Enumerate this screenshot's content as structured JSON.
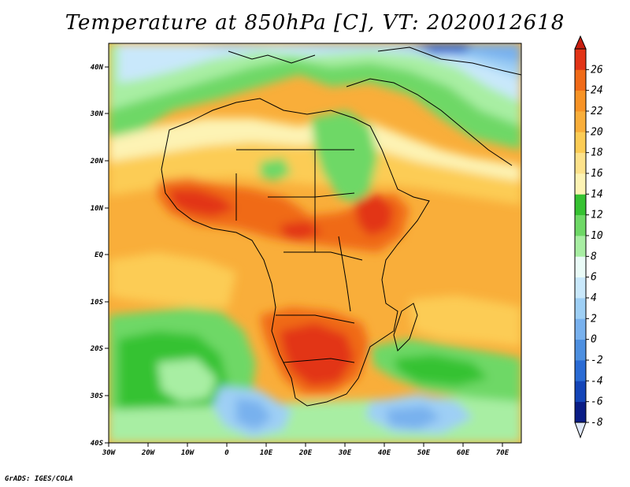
{
  "title": "Temperature at 850hPa [C], VT: 2020012618",
  "credit": "GrADS: IGES/COLA",
  "lon_ticks": [
    "30W",
    "20W",
    "10W",
    "0",
    "10E",
    "20E",
    "30E",
    "40E",
    "50E",
    "60E",
    "70E"
  ],
  "lat_ticks": [
    "40N",
    "30N",
    "20N",
    "10N",
    "EQ",
    "10S",
    "20S",
    "30S",
    "40S"
  ],
  "colorbar": {
    "labels": [
      "26",
      "24",
      "22",
      "20",
      "18",
      "16",
      "14",
      "12",
      "10",
      "8",
      "6",
      "4",
      "2",
      "0",
      "-2",
      "-4",
      "-6",
      "-8"
    ],
    "colors": [
      "#e23417",
      "#f06a18",
      "#f79326",
      "#f9ae3a",
      "#fccc55",
      "#fde28b",
      "#fdf3b4",
      "#36c232",
      "#6ed866",
      "#a8eea3",
      "#eafbf7",
      "#c9e8fb",
      "#9ecff5",
      "#78b1ee",
      "#4d8fe0",
      "#2a6bd4",
      "#1445b8",
      "#0a1d86"
    ]
  },
  "chart_data": {
    "type": "heatmap",
    "title": "Temperature at 850hPa [C], VT: 2020012618",
    "variable": "Temperature at 850hPa",
    "units": "C",
    "valid_time": "2020012618",
    "lon_range": [
      -30,
      75
    ],
    "lat_range": [
      -40,
      45
    ],
    "color_scale": [
      -8,
      -6,
      -4,
      -2,
      0,
      2,
      4,
      6,
      8,
      10,
      12,
      14,
      16,
      18,
      20,
      22,
      24,
      26
    ]
  }
}
